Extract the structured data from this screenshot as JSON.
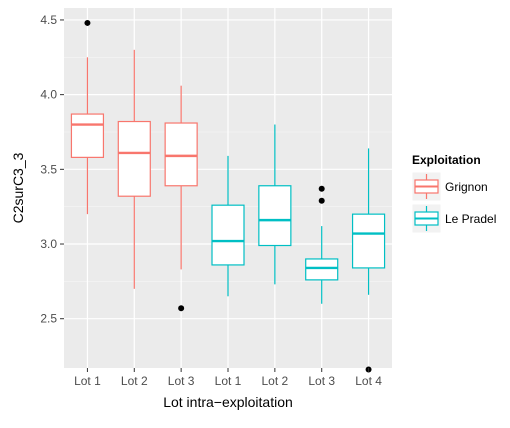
{
  "chart_data": {
    "type": "boxplot",
    "xlabel": "Lot intra−exploitation",
    "ylabel": "C2surC3_3",
    "ylim": [
      2.17,
      4.58
    ],
    "yticks": [
      2.5,
      3.0,
      3.5,
      4.0,
      4.5
    ],
    "ytick_labels": [
      "2.5",
      "3.0",
      "3.5",
      "4.0",
      "4.5"
    ],
    "grid": true,
    "background": "#ebebeb",
    "legend": {
      "title": "Exploitation",
      "placement": "right"
    },
    "series": [
      {
        "name": "Grignon",
        "color": "#f8766d"
      },
      {
        "name": "Le Pradel",
        "color": "#00bfc4"
      }
    ],
    "boxes": [
      {
        "category": "Lot 1",
        "series": "Grignon",
        "whisker_low": 3.2,
        "q1": 3.58,
        "median": 3.8,
        "q3": 3.87,
        "whisker_high": 4.25,
        "outliers": [
          4.48
        ]
      },
      {
        "category": "Lot 2",
        "series": "Grignon",
        "whisker_low": 2.7,
        "q1": 3.32,
        "median": 3.61,
        "q3": 3.82,
        "whisker_high": 4.3,
        "outliers": []
      },
      {
        "category": "Lot 3",
        "series": "Grignon",
        "whisker_low": 2.83,
        "q1": 3.39,
        "median": 3.59,
        "q3": 3.81,
        "whisker_high": 4.06,
        "outliers": [
          2.57
        ]
      },
      {
        "category": "Lot 1",
        "series": "Le Pradel",
        "whisker_low": 2.65,
        "q1": 2.86,
        "median": 3.02,
        "q3": 3.26,
        "whisker_high": 3.59,
        "outliers": []
      },
      {
        "category": "Lot 2",
        "series": "Le Pradel",
        "whisker_low": 2.73,
        "q1": 2.99,
        "median": 3.16,
        "q3": 3.39,
        "whisker_high": 3.8,
        "outliers": []
      },
      {
        "category": "Lot 3",
        "series": "Le Pradel",
        "whisker_low": 2.6,
        "q1": 2.76,
        "median": 2.84,
        "q3": 2.9,
        "whisker_high": 3.12,
        "outliers": [
          3.29,
          3.37
        ]
      },
      {
        "category": "Lot 4",
        "series": "Le Pradel",
        "whisker_low": 2.66,
        "q1": 2.84,
        "median": 3.07,
        "q3": 3.2,
        "whisker_high": 3.64,
        "outliers": [
          2.16
        ]
      }
    ]
  }
}
